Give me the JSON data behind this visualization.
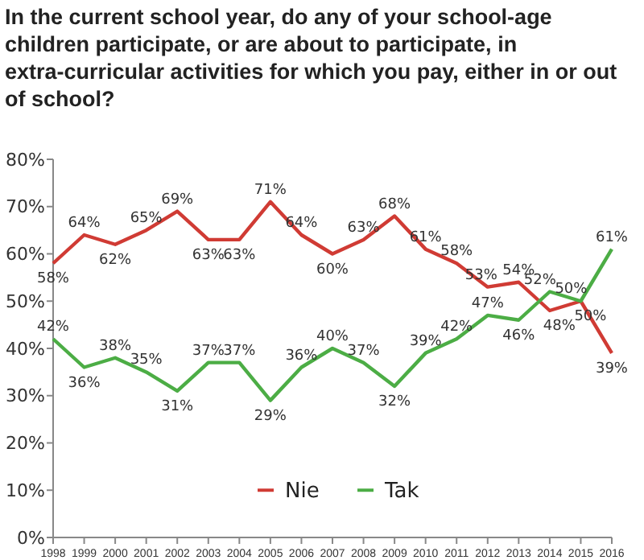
{
  "chart_data": {
    "type": "line",
    "title": "In the current school year, do any of your school-age children participate, or are about to participate, in extra-curricular activities for which you pay, either in or out of school?",
    "categories": [
      "1998",
      "1999",
      "2000",
      "2001",
      "2002",
      "2003",
      "2004",
      "2005",
      "2006",
      "2007",
      "2008",
      "2009",
      "2010",
      "2011",
      "2012",
      "2013",
      "2014",
      "2015",
      "2016"
    ],
    "series": [
      {
        "name": "Nie",
        "color": "#d03b34",
        "values": [
          58,
          64,
          62,
          65,
          69,
          63,
          63,
          71,
          64,
          60,
          63,
          68,
          61,
          58,
          53,
          54,
          48,
          50,
          39
        ],
        "value_labels": [
          "58%",
          "64%",
          "62%",
          "65%",
          "69%",
          "63%",
          "63%",
          "71%",
          "64%",
          "60%",
          "63%",
          "68%",
          "61%",
          "58%",
          "53%",
          "54%",
          "48%",
          "50%",
          "39%"
        ]
      },
      {
        "name": "Tak",
        "color": "#4cad45",
        "values": [
          42,
          36,
          38,
          35,
          31,
          37,
          37,
          29,
          36,
          40,
          37,
          32,
          39,
          42,
          47,
          46,
          52,
          50,
          61
        ],
        "value_labels": [
          "42%",
          "36%",
          "38%",
          "35%",
          "31%",
          "37%",
          "37%",
          "29%",
          "36%",
          "40%",
          "37%",
          "32%",
          "39%",
          "42%",
          "47%",
          "46%",
          "52%",
          "50%",
          "61%"
        ]
      }
    ],
    "ylim": [
      0,
      80
    ],
    "yticks": [
      {
        "value": 0,
        "label": "0%"
      },
      {
        "value": 10,
        "label": "10%"
      },
      {
        "value": 20,
        "label": "20%"
      },
      {
        "value": 30,
        "label": "30%"
      },
      {
        "value": 40,
        "label": "40%"
      },
      {
        "value": 50,
        "label": "50%"
      },
      {
        "value": 60,
        "label": "60%"
      },
      {
        "value": 70,
        "label": "70%"
      },
      {
        "value": 80,
        "label": "80%"
      }
    ],
    "grid": false,
    "legend": "bottom",
    "marker": "none",
    "line_style": "solid"
  }
}
